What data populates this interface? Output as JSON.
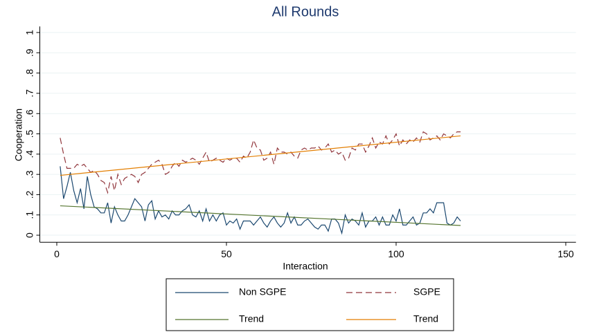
{
  "chart_data": {
    "type": "line",
    "title": "All Rounds",
    "x_label": "Interaction",
    "y_label": "Cooperation",
    "xlim": [
      -5,
      153
    ],
    "ylim": [
      -0.035,
      1.03
    ],
    "xticks": [
      0,
      50,
      100,
      150
    ],
    "yticks": [
      0,
      {
        "value": 0.1,
        "label": ".1"
      },
      {
        "value": 0.2,
        "label": ".2"
      },
      {
        "value": 0.3,
        "label": ".3"
      },
      {
        "value": 0.4,
        "label": ".4"
      },
      {
        "value": 0.5,
        "label": ".5"
      },
      {
        "value": 0.6,
        "label": ".6"
      },
      {
        "value": 0.7,
        "label": ".7"
      },
      {
        "value": 0.8,
        "label": ".8"
      },
      {
        "value": 0.9,
        "label": ".9"
      },
      1
    ],
    "grid": true,
    "legend": "bottom",
    "x": [
      1,
      2,
      3,
      4,
      5,
      6,
      7,
      8,
      9,
      10,
      11,
      12,
      13,
      14,
      15,
      16,
      17,
      18,
      19,
      20,
      21,
      22,
      23,
      24,
      25,
      26,
      27,
      28,
      29,
      30,
      31,
      32,
      33,
      34,
      35,
      36,
      37,
      38,
      39,
      40,
      41,
      42,
      43,
      44,
      45,
      46,
      47,
      48,
      49,
      50,
      51,
      52,
      53,
      54,
      55,
      56,
      57,
      58,
      59,
      60,
      61,
      62,
      63,
      64,
      65,
      66,
      67,
      68,
      69,
      70,
      71,
      72,
      73,
      74,
      75,
      76,
      77,
      78,
      79,
      80,
      81,
      82,
      83,
      84,
      85,
      86,
      87,
      88,
      89,
      90,
      91,
      92,
      93,
      94,
      95,
      96,
      97,
      98,
      99,
      100,
      101,
      102,
      103,
      104,
      105,
      106,
      107,
      108,
      109,
      110,
      111,
      112,
      113,
      114,
      115,
      116,
      117,
      118,
      119
    ],
    "series": [
      {
        "name": "Non SGPE",
        "color": "#1a476f",
        "style": "solid",
        "values": [
          0.34,
          0.18,
          0.24,
          0.31,
          0.22,
          0.16,
          0.23,
          0.13,
          0.29,
          0.2,
          0.14,
          0.13,
          0.11,
          0.11,
          0.16,
          0.06,
          0.14,
          0.1,
          0.07,
          0.07,
          0.1,
          0.14,
          0.18,
          0.16,
          0.14,
          0.07,
          0.15,
          0.17,
          0.08,
          0.12,
          0.09,
          0.1,
          0.08,
          0.12,
          0.1,
          0.1,
          0.12,
          0.13,
          0.15,
          0.1,
          0.09,
          0.12,
          0.07,
          0.13,
          0.07,
          0.1,
          0.07,
          0.1,
          0.11,
          0.05,
          0.07,
          0.06,
          0.08,
          0.03,
          0.07,
          0.07,
          0.07,
          0.05,
          0.07,
          0.09,
          0.06,
          0.04,
          0.07,
          0.09,
          0.06,
          0.04,
          0.06,
          0.11,
          0.06,
          0.09,
          0.05,
          0.05,
          0.07,
          0.08,
          0.06,
          0.04,
          0.03,
          0.05,
          0.05,
          0.02,
          0.08,
          0.08,
          0.06,
          0.01,
          0.1,
          0.06,
          0.08,
          0.07,
          0.05,
          0.11,
          0.04,
          0.07,
          0.07,
          0.09,
          0.05,
          0.09,
          0.05,
          0.05,
          0.1,
          0.07,
          0.13,
          0.05,
          0.05,
          0.07,
          0.09,
          0.05,
          0.06,
          0.11,
          0.11,
          0.13,
          0.11,
          0.16,
          0.16,
          0.16,
          0.06,
          0.05,
          0.06,
          0.09,
          0.07
        ]
      },
      {
        "name": "SGPE",
        "color": "#90353b",
        "style": "dashed",
        "values": [
          0.48,
          0.4,
          0.33,
          0.33,
          0.33,
          0.35,
          0.34,
          0.35,
          0.33,
          0.31,
          0.32,
          0.3,
          0.27,
          0.26,
          0.21,
          0.29,
          0.22,
          0.3,
          0.25,
          0.28,
          0.29,
          0.3,
          0.29,
          0.26,
          0.3,
          0.31,
          0.33,
          0.35,
          0.36,
          0.37,
          0.35,
          0.3,
          0.31,
          0.34,
          0.36,
          0.34,
          0.37,
          0.36,
          0.37,
          0.38,
          0.37,
          0.35,
          0.38,
          0.41,
          0.36,
          0.37,
          0.38,
          0.37,
          0.36,
          0.38,
          0.37,
          0.38,
          0.38,
          0.36,
          0.39,
          0.38,
          0.41,
          0.47,
          0.43,
          0.42,
          0.37,
          0.38,
          0.41,
          0.35,
          0.43,
          0.41,
          0.41,
          0.4,
          0.41,
          0.39,
          0.38,
          0.42,
          0.43,
          0.42,
          0.43,
          0.43,
          0.44,
          0.42,
          0.43,
          0.45,
          0.41,
          0.42,
          0.4,
          0.41,
          0.37,
          0.38,
          0.43,
          0.42,
          0.45,
          0.45,
          0.41,
          0.44,
          0.48,
          0.43,
          0.46,
          0.45,
          0.49,
          0.45,
          0.47,
          0.5,
          0.44,
          0.47,
          0.45,
          0.47,
          0.46,
          0.48,
          0.46,
          0.51,
          0.5,
          0.47,
          0.48,
          0.49,
          0.47,
          0.5,
          0.49,
          0.48,
          0.5,
          0.51,
          0.51
        ]
      },
      {
        "name": "Trend",
        "color": "#55752f",
        "style": "solid",
        "x": [
          1,
          119
        ],
        "values": [
          0.145,
          0.048
        ]
      },
      {
        "name": "Trend",
        "color": "#e37e00",
        "style": "solid",
        "x": [
          1,
          119
        ],
        "values": [
          0.295,
          0.49
        ]
      }
    ]
  }
}
